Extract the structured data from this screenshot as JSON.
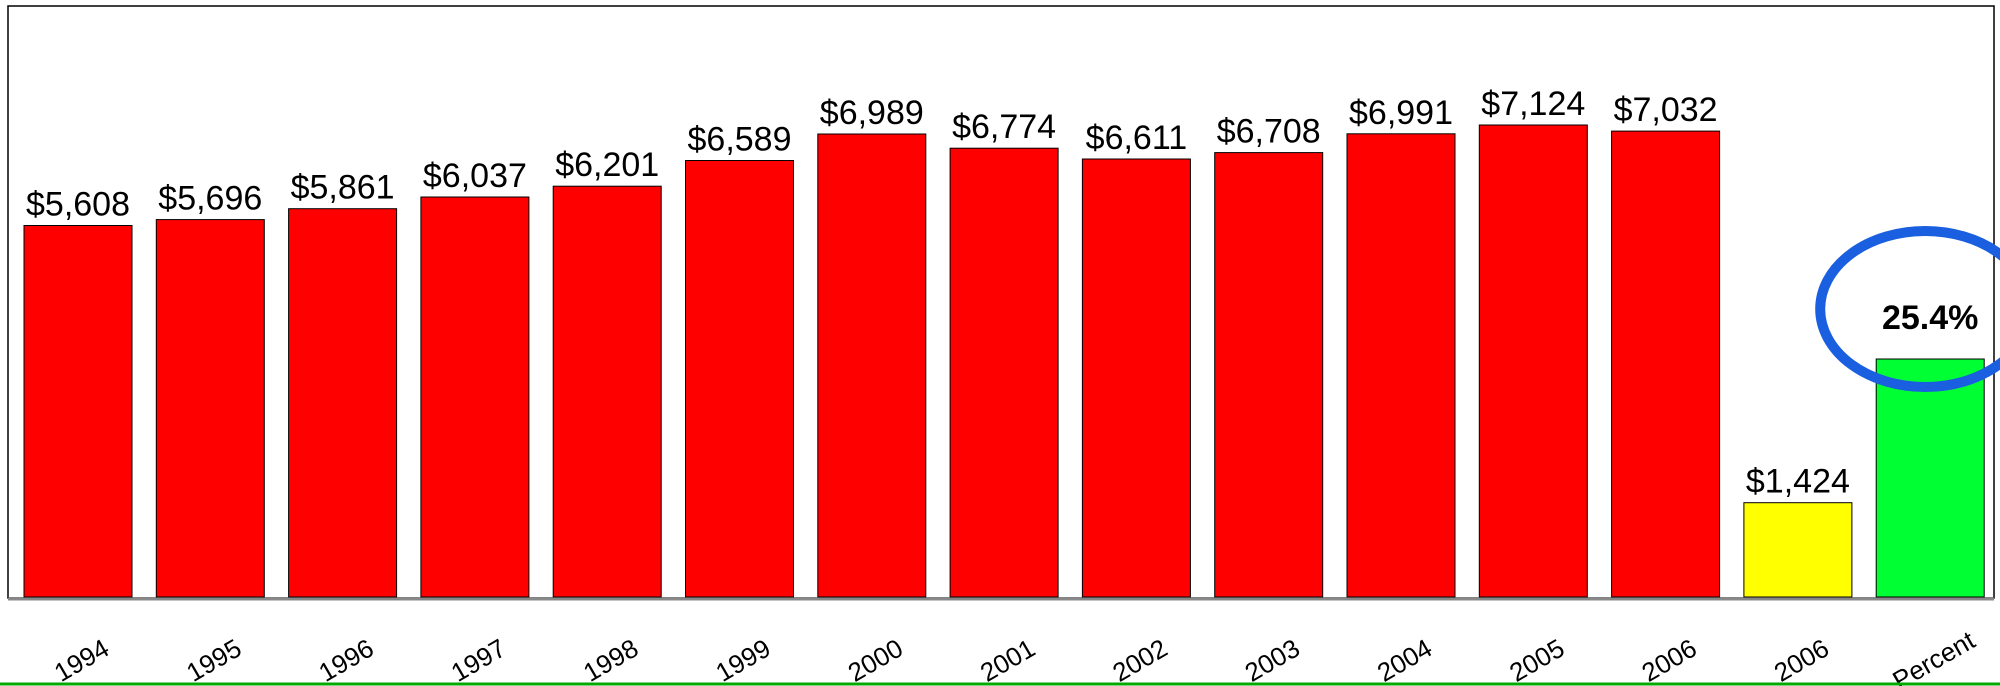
{
  "chart_data": {
    "type": "bar",
    "categories": [
      "1994",
      "1995",
      "1996",
      "1997",
      "1998",
      "1999",
      "2000",
      "2001",
      "2002",
      "2003",
      "2004",
      "2005",
      "2006",
      "2006",
      "Percent"
    ],
    "values": [
      5608,
      5696,
      5861,
      6037,
      6201,
      6589,
      6989,
      6774,
      6611,
      6708,
      6991,
      7124,
      7032,
      1424,
      25.4
    ],
    "value_labels": [
      "$5,608",
      "$5,696",
      "$5,861",
      "$6,037",
      "$6,201",
      "$6,589",
      "$6,989",
      "$6,774",
      "$6,611",
      "$6,708",
      "$6,991",
      "$7,124",
      "$7,032",
      "$1,424",
      "25.4%"
    ],
    "bar_colors": [
      "#ff0000",
      "#ff0000",
      "#ff0000",
      "#ff0000",
      "#ff0000",
      "#ff0000",
      "#ff0000",
      "#ff0000",
      "#ff0000",
      "#ff0000",
      "#ff0000",
      "#ff0000",
      "#ff0000",
      "#ffff00",
      "#00ff33"
    ],
    "ylim": [
      0,
      8000
    ],
    "grid": false,
    "highlight": {
      "index": 14,
      "shape": "ellipse",
      "color": "#1a5fe0"
    },
    "colors": {
      "outline": "#000000",
      "baseline_shadow": "#888888",
      "bottom_border": "#00aa00"
    }
  }
}
